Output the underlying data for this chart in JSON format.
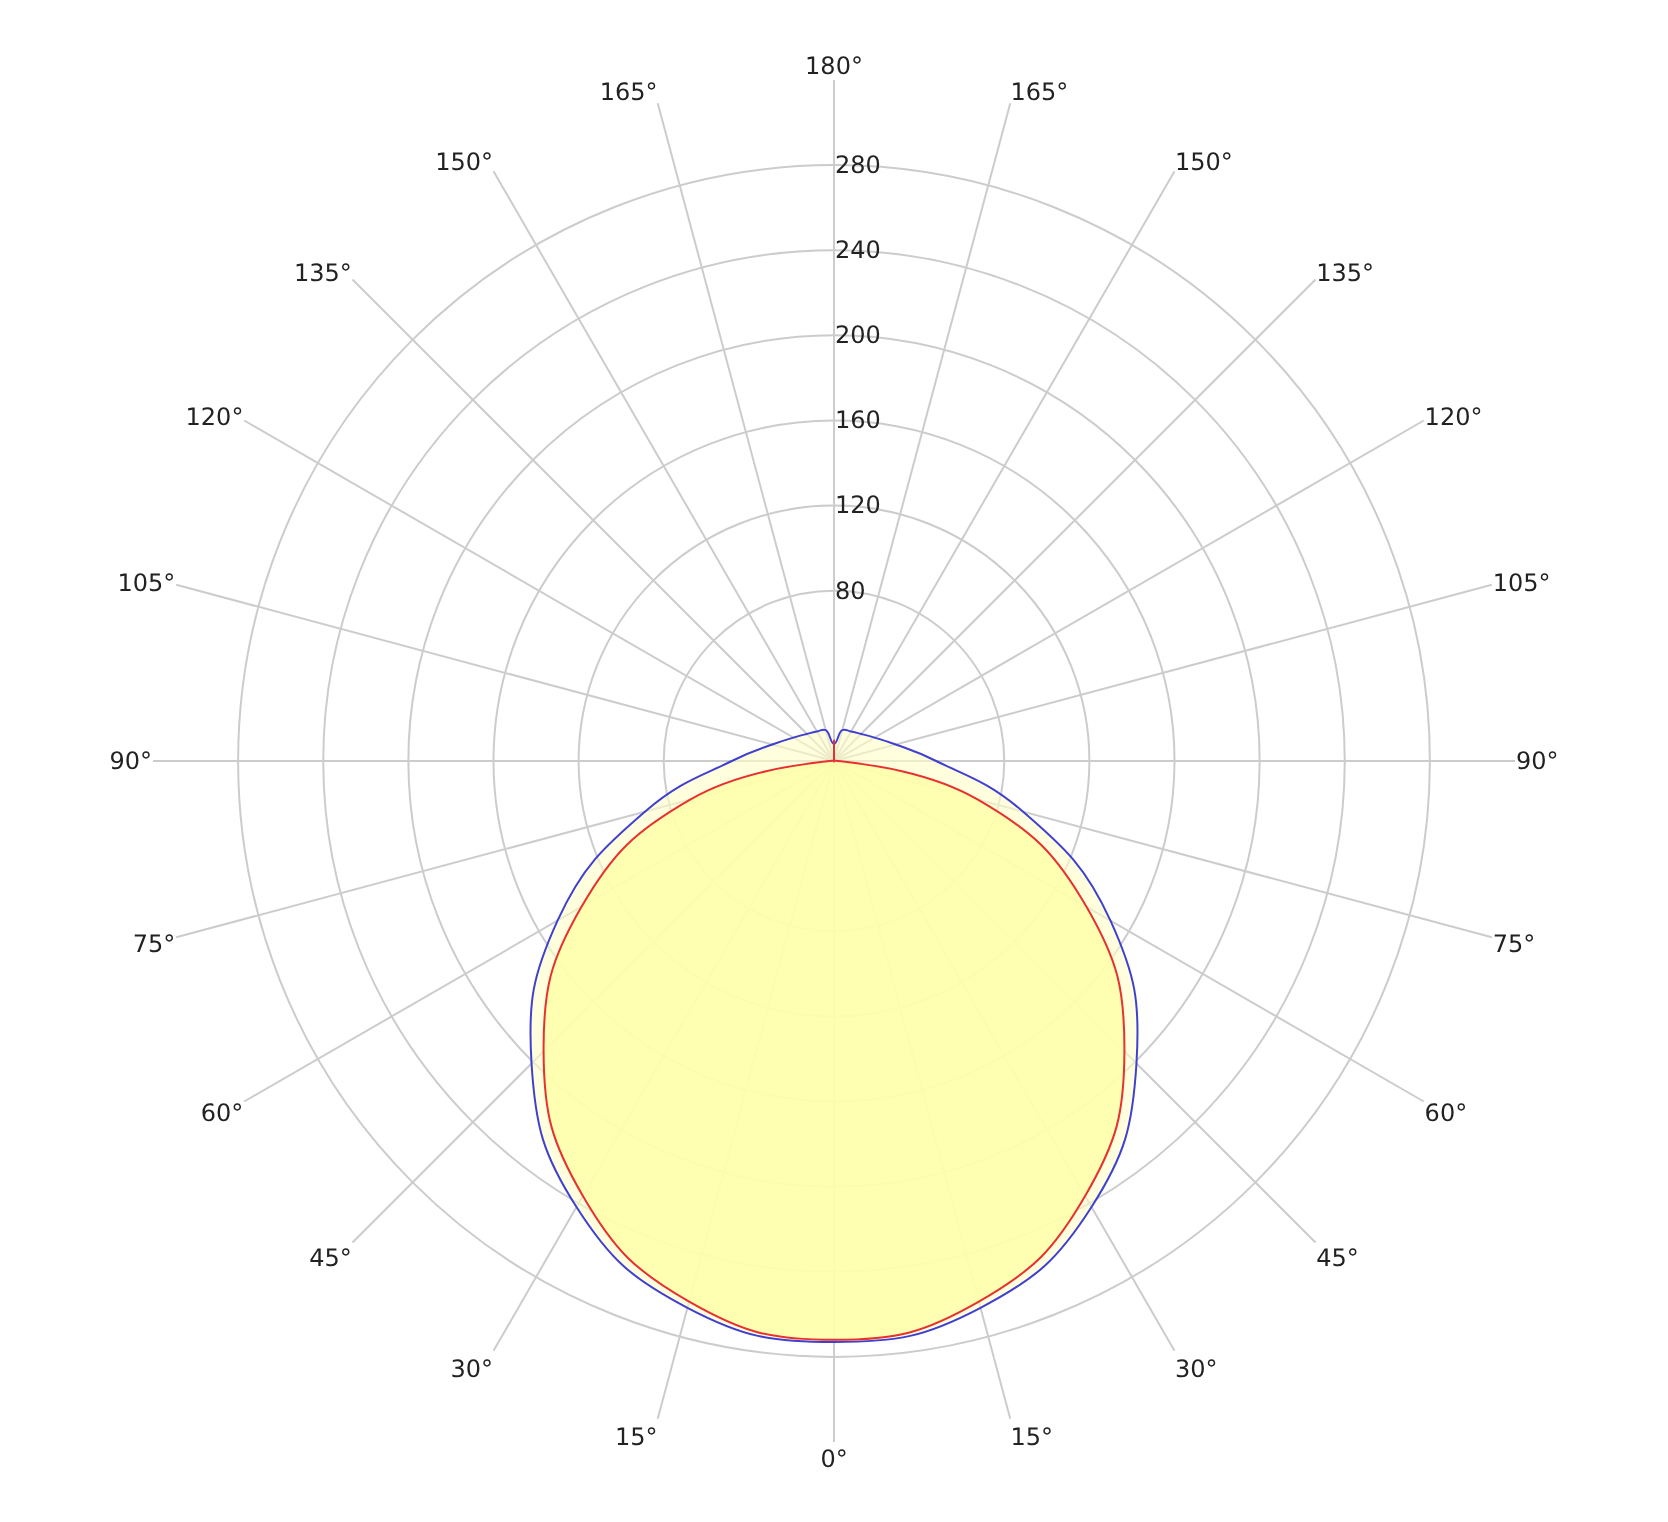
{
  "chart_data": {
    "type": "radar",
    "categories": [
      "180°",
      "165°",
      "150°",
      "135°",
      "120°",
      "105°",
      "90°",
      "75°",
      "60°",
      "45°",
      "30°",
      "15°",
      "0°",
      "15°",
      "30°",
      "45°",
      "60°",
      "75°",
      "90°",
      "105°",
      "120°",
      "135°",
      "150°",
      "165°"
    ],
    "series": [
      {
        "color": "#4040d0",
        "values": [
          8,
          15,
          16,
          18,
          22,
          30,
          48,
          92,
          150,
          201,
          242,
          266,
          273,
          266,
          242,
          201,
          150,
          92,
          48,
          30,
          22,
          18,
          16,
          15
        ]
      },
      {
        "color": "#e83030",
        "values": [
          10,
          0,
          0,
          0,
          0,
          0,
          2,
          70,
          137,
          193,
          236,
          263,
          272,
          263,
          236,
          193,
          137,
          70,
          2,
          0,
          0,
          0,
          0,
          0
        ]
      }
    ],
    "ylim": [
      0,
      320
    ],
    "yticks": [
      80,
      120,
      160,
      200,
      240,
      280
    ],
    "grid": true,
    "marker": "none",
    "line_style": "solid"
  }
}
